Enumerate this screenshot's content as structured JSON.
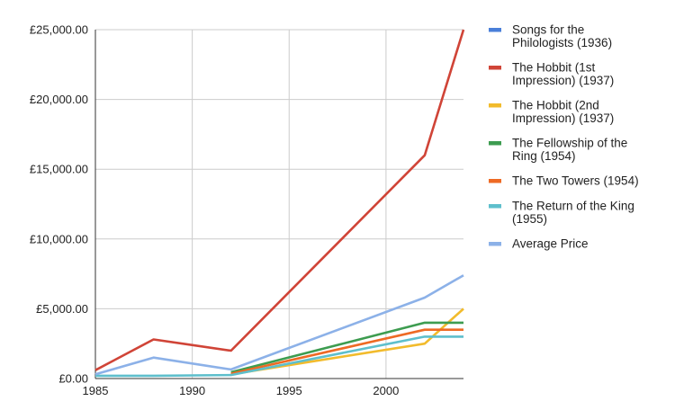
{
  "chart_data": {
    "type": "line",
    "title": "",
    "xlabel": "",
    "ylabel": "",
    "xlim": [
      1985,
      2004
    ],
    "ylim": [
      0,
      25000
    ],
    "x_ticks": [
      1985,
      1990,
      1995,
      2000
    ],
    "x_tick_labels": [
      "1985",
      "1990",
      "1995",
      "2000"
    ],
    "y_ticks": [
      0,
      5000,
      10000,
      15000,
      20000,
      25000
    ],
    "y_tick_labels": [
      "£0.00",
      "£5,000.00",
      "£10,000.00",
      "£15,000.00",
      "£20,000.00",
      "£25,000.00"
    ],
    "grid": true,
    "legend_position": "right",
    "series": [
      {
        "name": "Songs for the Philologists (1936)",
        "legend_lines": [
          "Songs for the",
          "Philologists (1936)"
        ],
        "color": "#4a7fd9",
        "points": []
      },
      {
        "name": "The Hobbit (1st Impression) (1937)",
        "legend_lines": [
          "The Hobbit (1st",
          "Impression) (1937)"
        ],
        "color": "#d04437",
        "points": [
          [
            1985,
            600
          ],
          [
            1988,
            2800
          ],
          [
            1992,
            2000
          ],
          [
            2002,
            16000
          ],
          [
            2004,
            25000
          ]
        ]
      },
      {
        "name": "The Hobbit (2nd Impression) (1937)",
        "legend_lines": [
          "The Hobbit (2nd",
          "Impression) (1937)"
        ],
        "color": "#f2bb2c",
        "points": [
          [
            1992,
            300
          ],
          [
            2002,
            2500
          ],
          [
            2004,
            5000
          ]
        ]
      },
      {
        "name": "The Fellowship of the Ring (1954)",
        "legend_lines": [
          "The Fellowship of the",
          "Ring (1954)"
        ],
        "color": "#3d9c50",
        "points": [
          [
            1992,
            450
          ],
          [
            2002,
            4000
          ],
          [
            2004,
            4000
          ]
        ]
      },
      {
        "name": "The Two Towers (1954)",
        "legend_lines": [
          "The Two Towers (1954)"
        ],
        "color": "#ee6a24",
        "points": [
          [
            1992,
            350
          ],
          [
            2002,
            3500
          ],
          [
            2004,
            3500
          ]
        ]
      },
      {
        "name": "The Return of the King (1955)",
        "legend_lines": [
          "The Return of the King",
          "(1955)"
        ],
        "color": "#5ebfcc",
        "points": [
          [
            1985,
            200
          ],
          [
            1988,
            200
          ],
          [
            1992,
            250
          ],
          [
            2002,
            3000
          ],
          [
            2004,
            3000
          ]
        ]
      },
      {
        "name": "Average Price",
        "legend_lines": [
          "Average Price"
        ],
        "color": "#8cb1e8",
        "points": [
          [
            1985,
            300
          ],
          [
            1988,
            1500
          ],
          [
            1992,
            650
          ],
          [
            2002,
            5800
          ],
          [
            2004,
            7400
          ]
        ]
      }
    ]
  }
}
